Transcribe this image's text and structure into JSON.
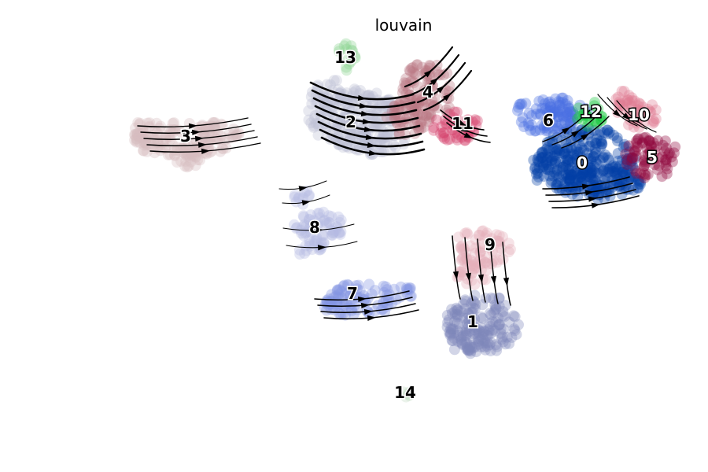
{
  "chart_data": {
    "type": "scatter",
    "title": "louvain",
    "xlabel": "",
    "ylabel": "",
    "legend": "on data",
    "grid": false,
    "overlay": "velocity streamlines",
    "series": [
      {
        "cluster": "0",
        "color": "#023fa5"
      },
      {
        "cluster": "1",
        "color": "#7d87b9"
      },
      {
        "cluster": "2",
        "color": "#bec1d4"
      },
      {
        "cluster": "3",
        "color": "#d6bcc0"
      },
      {
        "cluster": "4",
        "color": "#bb7784"
      },
      {
        "cluster": "5",
        "color": "#8e063b"
      },
      {
        "cluster": "6",
        "color": "#4a6fe3"
      },
      {
        "cluster": "7",
        "color": "#8595e1"
      },
      {
        "cluster": "8",
        "color": "#b5bbe3"
      },
      {
        "cluster": "9",
        "color": "#e6afb9"
      },
      {
        "cluster": "10",
        "color": "#e07b91"
      },
      {
        "cluster": "11",
        "color": "#d33f6a"
      },
      {
        "cluster": "12",
        "color": "#11c638"
      },
      {
        "cluster": "13",
        "color": "#8dd593"
      },
      {
        "cluster": "14",
        "color": "#c6dec7"
      }
    ]
  }
}
